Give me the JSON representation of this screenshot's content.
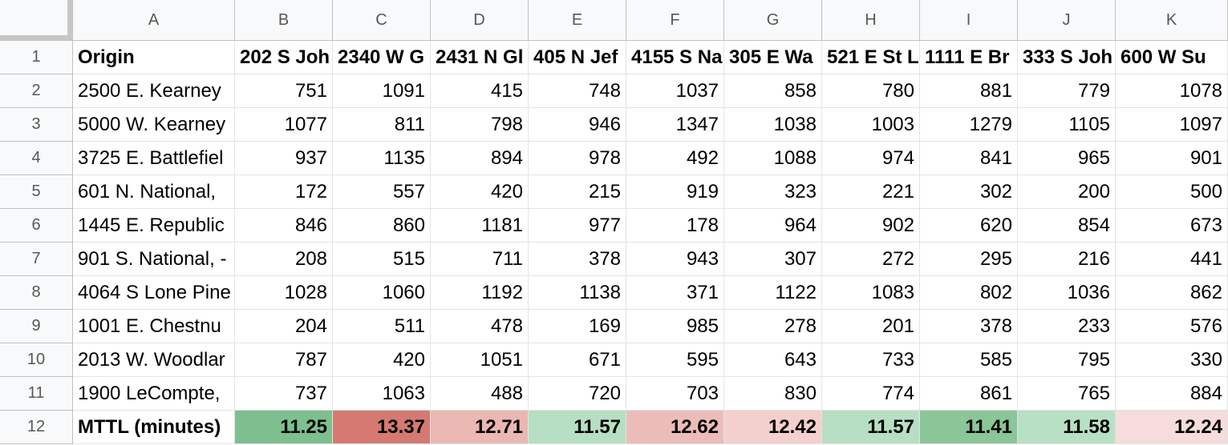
{
  "column_letters": [
    "A",
    "B",
    "C",
    "D",
    "E",
    "F",
    "G",
    "H",
    "I",
    "J",
    "K"
  ],
  "row_numbers": [
    "1",
    "2",
    "3",
    "4",
    "5",
    "6",
    "7",
    "8",
    "9",
    "10",
    "11",
    "12"
  ],
  "header_row": [
    "Origin",
    "202 S Joh",
    "2340 W G",
    "2431 N Gl",
    "405 N Jef",
    "4155 S Na",
    "305 E Wa",
    "521 E St L",
    "1111 E Br",
    "333 S Joh",
    "600 W Su"
  ],
  "data_rows": [
    {
      "origin": "2500 E. Kearney",
      "values": [
        "751",
        "1091",
        "415",
        "748",
        "1037",
        "858",
        "780",
        "881",
        "779",
        "1078"
      ]
    },
    {
      "origin": "5000 W. Kearney",
      "values": [
        "1077",
        "811",
        "798",
        "946",
        "1347",
        "1038",
        "1003",
        "1279",
        "1105",
        "1097"
      ]
    },
    {
      "origin": "3725 E. Battlefiel",
      "values": [
        "937",
        "1135",
        "894",
        "978",
        "492",
        "1088",
        "974",
        "841",
        "965",
        "901"
      ]
    },
    {
      "origin": "601 N. National,",
      "values": [
        "172",
        "557",
        "420",
        "215",
        "919",
        "323",
        "221",
        "302",
        "200",
        "500"
      ]
    },
    {
      "origin": "1445 E. Republic",
      "values": [
        "846",
        "860",
        "1181",
        "977",
        "178",
        "964",
        "902",
        "620",
        "854",
        "673"
      ]
    },
    {
      "origin": "901 S. National, -",
      "values": [
        "208",
        "515",
        "711",
        "378",
        "943",
        "307",
        "272",
        "295",
        "216",
        "441"
      ]
    },
    {
      "origin": "4064 S Lone Pine",
      "values": [
        "1028",
        "1060",
        "1192",
        "1138",
        "371",
        "1122",
        "1083",
        "802",
        "1036",
        "862"
      ]
    },
    {
      "origin": "1001 E. Chestnu",
      "values": [
        "204",
        "511",
        "478",
        "169",
        "985",
        "278",
        "201",
        "378",
        "233",
        "576"
      ]
    },
    {
      "origin": "2013 W. Woodlar",
      "values": [
        "787",
        "420",
        "1051",
        "671",
        "595",
        "643",
        "733",
        "585",
        "795",
        "330"
      ]
    },
    {
      "origin": "1900 LeCompte,",
      "values": [
        "737",
        "1063",
        "488",
        "720",
        "703",
        "830",
        "774",
        "861",
        "765",
        "884"
      ]
    }
  ],
  "summary_row": {
    "label": "MTTL (minutes)",
    "values": [
      "11.25",
      "13.37",
      "12.71",
      "11.57",
      "12.62",
      "12.42",
      "11.57",
      "11.41",
      "11.58",
      "12.24"
    ],
    "colors": [
      "#7dbf8e",
      "#d47a72",
      "#ebb7b2",
      "#b6dfc3",
      "#ecbcb8",
      "#f3d0cd",
      "#b7dfc3",
      "#8ac697",
      "#b8e0c4",
      "#f6dcda"
    ]
  }
}
